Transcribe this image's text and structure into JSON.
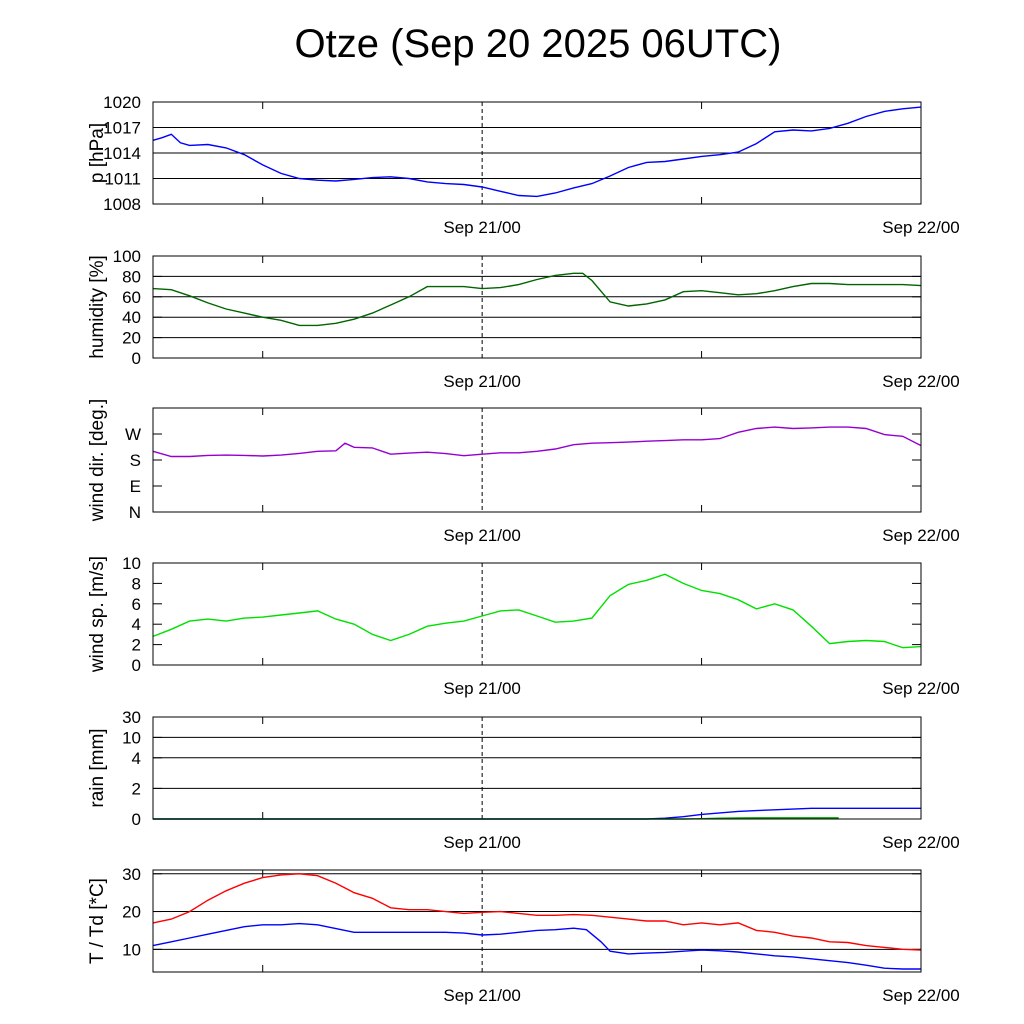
{
  "title": "Otze (Sep 20 2025 06UTC)",
  "chart_data": [
    {
      "type": "line",
      "ylabel": "p [hPa]",
      "ylim": [
        1008,
        1020
      ],
      "yticks": [
        1008,
        1011,
        1014,
        1017,
        1020
      ],
      "ytick_labels": [
        "1008",
        "1011",
        "1014",
        "1017",
        "1020"
      ],
      "grid": true,
      "xlim": [
        0,
        42
      ],
      "x_tick_labels": [
        {
          "x": 18,
          "label": "Sep 21/00"
        },
        {
          "x": 42,
          "label": "Sep 22/00"
        }
      ],
      "series": [
        {
          "color": "#0000ff",
          "x": [
            0,
            0.5,
            1,
            1.5,
            2,
            3,
            4,
            5,
            6,
            7,
            8,
            9,
            10,
            11,
            12,
            13,
            14,
            15,
            16,
            17,
            18,
            19,
            20,
            21,
            22,
            23,
            24,
            25,
            26,
            27,
            28,
            29,
            30,
            31,
            32,
            33,
            34,
            35,
            36,
            37,
            38,
            39,
            40,
            41,
            42
          ],
          "y": [
            1015.5,
            1015.8,
            1016.2,
            1015.2,
            1014.9,
            1015.0,
            1014.6,
            1013.8,
            1012.6,
            1011.6,
            1011.0,
            1010.8,
            1010.7,
            1010.9,
            1011.1,
            1011.2,
            1011.0,
            1010.6,
            1010.4,
            1010.3,
            1010.0,
            1009.5,
            1009.0,
            1008.9,
            1009.3,
            1009.9,
            1010.4,
            1011.3,
            1012.3,
            1012.9,
            1013.0,
            1013.3,
            1013.6,
            1013.8,
            1014.1,
            1015.1,
            1016.5,
            1016.7,
            1016.6,
            1016.9,
            1017.5,
            1018.3,
            1018.9,
            1019.2,
            1019.4
          ]
        }
      ]
    },
    {
      "type": "line",
      "ylabel": "humidity [%]",
      "ylim": [
        0,
        100
      ],
      "yticks": [
        0,
        20,
        40,
        60,
        80,
        100
      ],
      "ytick_labels": [
        "0",
        "20",
        "40",
        "60",
        "80",
        "100"
      ],
      "grid": true,
      "xlim": [
        0,
        42
      ],
      "x_tick_labels": [
        {
          "x": 18,
          "label": "Sep 21/00"
        },
        {
          "x": 42,
          "label": "Sep 22/00"
        }
      ],
      "series": [
        {
          "color": "#006400",
          "x": [
            0,
            1,
            2,
            3,
            4,
            5,
            6,
            7,
            8,
            9,
            10,
            11,
            12,
            13,
            14,
            15,
            16,
            17,
            18,
            19,
            20,
            21,
            22,
            23,
            23.5,
            24,
            25,
            26,
            27,
            28,
            29,
            30,
            31,
            32,
            33,
            34,
            35,
            36,
            37,
            38,
            39,
            40,
            41,
            42
          ],
          "y": [
            68,
            67,
            61,
            54,
            48,
            44,
            40,
            37,
            32,
            32,
            34,
            38,
            44,
            52,
            60,
            70,
            70,
            70,
            68,
            69,
            72,
            77,
            81,
            83,
            83,
            76,
            55,
            51,
            53,
            57,
            65,
            66,
            64,
            62,
            63,
            66,
            70,
            73,
            73,
            72,
            72,
            72,
            72,
            71
          ]
        }
      ]
    },
    {
      "type": "line",
      "ylabel": "wind dir. [deg.]",
      "ylim": [
        0,
        360
      ],
      "yticks": [
        0,
        90,
        180,
        270
      ],
      "ytick_labels": [
        "N",
        "E",
        "S",
        "W"
      ],
      "grid": false,
      "xlim": [
        0,
        42
      ],
      "x_tick_labels": [
        {
          "x": 18,
          "label": "Sep 21/00"
        },
        {
          "x": 42,
          "label": "Sep 22/00"
        }
      ],
      "series": [
        {
          "color": "#9400d3",
          "x": [
            0,
            1,
            2,
            3,
            4,
            5,
            6,
            7,
            8,
            9,
            10,
            10.5,
            11,
            12,
            13,
            14,
            15,
            16,
            17,
            18,
            19,
            20,
            21,
            22,
            23,
            24,
            25,
            26,
            27,
            28,
            29,
            30,
            31,
            32,
            33,
            34,
            35,
            36,
            37,
            38,
            39,
            40,
            41,
            42
          ],
          "y": [
            210,
            192,
            192,
            196,
            197,
            196,
            194,
            197,
            203,
            210,
            212,
            238,
            224,
            222,
            200,
            204,
            207,
            202,
            195,
            200,
            205,
            205,
            210,
            218,
            233,
            238,
            240,
            242,
            245,
            247,
            250,
            250,
            254,
            276,
            289,
            294,
            289,
            291,
            294,
            294,
            289,
            268,
            262,
            230
          ]
        }
      ]
    },
    {
      "type": "line",
      "ylabel": "wind sp. [m/s]",
      "ylim": [
        0,
        10
      ],
      "yticks": [
        0,
        2,
        4,
        6,
        8,
        10
      ],
      "ytick_labels": [
        "0",
        "2",
        "4",
        "6",
        "8",
        "10"
      ],
      "grid": false,
      "xlim": [
        0,
        42
      ],
      "x_tick_labels": [
        {
          "x": 18,
          "label": "Sep 21/00"
        },
        {
          "x": 42,
          "label": "Sep 22/00"
        }
      ],
      "series": [
        {
          "color": "#00e000",
          "x": [
            0,
            1,
            2,
            3,
            4,
            5,
            6,
            7,
            8,
            9,
            10,
            11,
            12,
            13,
            14,
            15,
            16,
            17,
            18,
            19,
            20,
            21,
            22,
            23,
            24,
            25,
            26,
            27,
            28,
            29,
            30,
            31,
            32,
            33,
            34,
            35,
            36,
            37,
            38,
            39,
            40,
            41,
            42
          ],
          "y": [
            2.8,
            3.5,
            4.3,
            4.5,
            4.3,
            4.6,
            4.7,
            4.9,
            5.1,
            5.3,
            4.5,
            4.0,
            3.0,
            2.4,
            3.0,
            3.8,
            4.1,
            4.3,
            4.8,
            5.3,
            5.4,
            4.8,
            4.2,
            4.3,
            4.6,
            6.8,
            7.9,
            8.3,
            8.9,
            8.0,
            7.3,
            7.0,
            6.4,
            5.5,
            6.0,
            5.4,
            3.8,
            2.1,
            2.3,
            2.4,
            2.3,
            1.7,
            1.8
          ]
        }
      ]
    },
    {
      "type": "line",
      "ylabel": "rain [mm]",
      "ylim": [
        0,
        30
      ],
      "yticks": [
        0,
        2,
        4,
        10,
        30
      ],
      "ytick_labels": [
        "0",
        "2",
        "4",
        "10",
        "30"
      ],
      "grid": true,
      "xlim": [
        0,
        42
      ],
      "x_tick_labels": [
        {
          "x": 18,
          "label": "Sep 21/00"
        },
        {
          "x": 42,
          "label": "Sep 22/00"
        }
      ],
      "series": [
        {
          "color": "#0000ff",
          "x": [
            0,
            27,
            28,
            29,
            30,
            31,
            32,
            33,
            34,
            35,
            36,
            37,
            38,
            39,
            40,
            41,
            42
          ],
          "y": [
            0,
            0,
            0.05,
            0.15,
            0.3,
            0.4,
            0.5,
            0.55,
            0.6,
            0.65,
            0.7,
            0.7,
            0.7,
            0.7,
            0.7,
            0.7,
            0.7
          ]
        },
        {
          "color": "#00a000",
          "x": [
            0,
            29,
            30,
            31,
            32,
            33,
            34,
            35,
            36,
            37.5
          ],
          "y": [
            0,
            0,
            0.02,
            0.05,
            0.07,
            0.08,
            0.08,
            0.08,
            0.08,
            0.08
          ]
        }
      ]
    },
    {
      "type": "line",
      "ylabel": "T / Td [*C]",
      "ylim": [
        4,
        31
      ],
      "yticks": [
        10,
        20,
        30
      ],
      "ytick_labels": [
        "10",
        "20",
        "30"
      ],
      "grid": true,
      "xlim": [
        0,
        42
      ],
      "x_tick_labels": [
        {
          "x": 18,
          "label": "Sep 21/00"
        },
        {
          "x": 42,
          "label": "Sep 22/00"
        }
      ],
      "series": [
        {
          "color": "#ff0000",
          "x": [
            0,
            1,
            2,
            3,
            4,
            5,
            6,
            7,
            8,
            9,
            10,
            11,
            12,
            13,
            14,
            15,
            16,
            17,
            18,
            19,
            20,
            21,
            22,
            23,
            24,
            25,
            26,
            27,
            28,
            29,
            30,
            31,
            32,
            33,
            34,
            35,
            36,
            37,
            38,
            39,
            40,
            41,
            42
          ],
          "y": [
            17,
            18,
            20,
            23,
            25.5,
            27.5,
            29,
            29.7,
            30,
            29.5,
            27.5,
            25,
            23.5,
            21,
            20.5,
            20.5,
            20,
            19.5,
            19.8,
            20,
            19.5,
            19,
            19,
            19.2,
            19,
            18.5,
            18,
            17.5,
            17.5,
            16.5,
            17,
            16.5,
            17,
            15,
            14.5,
            13.5,
            13,
            12,
            11.8,
            11,
            10.5,
            10,
            9.8
          ]
        },
        {
          "color": "#0000ff",
          "x": [
            0,
            1,
            2,
            3,
            4,
            5,
            6,
            7,
            8,
            9,
            10,
            11,
            12,
            13,
            14,
            15,
            16,
            17,
            18,
            19,
            20,
            21,
            22,
            23,
            23.7,
            24.5,
            25,
            26,
            27,
            28,
            29,
            30,
            31,
            32,
            33,
            34,
            35,
            36,
            37,
            38,
            39,
            40,
            41,
            42
          ],
          "y": [
            11,
            12,
            13,
            14,
            15,
            16,
            16.5,
            16.5,
            16.8,
            16.5,
            15.5,
            14.5,
            14.5,
            14.5,
            14.5,
            14.5,
            14.5,
            14.3,
            13.8,
            14,
            14.5,
            15,
            15.2,
            15.6,
            15.2,
            12,
            9.5,
            8.8,
            9,
            9.2,
            9.5,
            9.8,
            9.6,
            9.3,
            8.8,
            8.3,
            8,
            7.5,
            7,
            6.5,
            5.8,
            5,
            4.8,
            4.8
          ]
        }
      ]
    }
  ]
}
